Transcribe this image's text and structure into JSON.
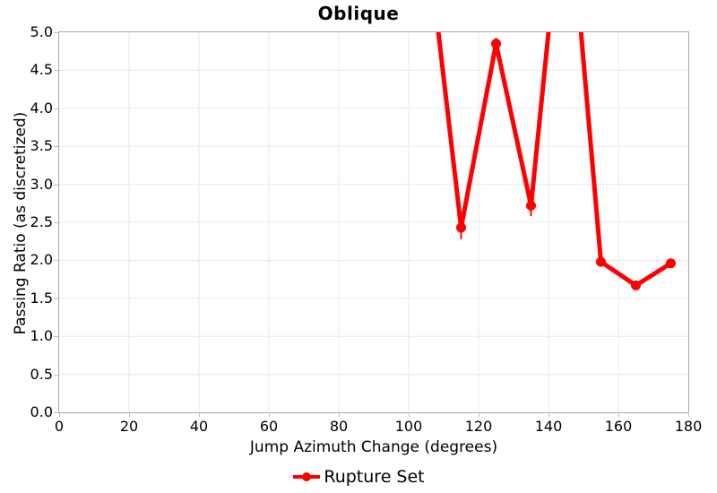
{
  "title": "Oblique",
  "axes": {
    "x_label": "Jump Azimuth Change (degrees)",
    "y_label": "Passing Ratio (as discretized)",
    "x_ticks": [
      "0",
      "20",
      "40",
      "60",
      "80",
      "100",
      "120",
      "140",
      "160",
      "180"
    ],
    "y_ticks": [
      "0.0",
      "0.5",
      "1.0",
      "1.5",
      "2.0",
      "2.5",
      "3.0",
      "3.5",
      "4.0",
      "4.5",
      "5.0"
    ]
  },
  "legend": {
    "label": "Rupture Set",
    "marker": "filled-circle-on-line"
  },
  "colors": {
    "line": "#ff0000",
    "grid": "#e8e8e8",
    "axis_border": "#a9a9a9",
    "tick": "#bdbdbd",
    "text": "#000000",
    "background": "#ffffff"
  },
  "chart_data": {
    "type": "line",
    "title": "Oblique",
    "xlabel": "Jump Azimuth Change (degrees)",
    "ylabel": "Passing Ratio (as discretized)",
    "xlim": [
      0,
      180
    ],
    "ylim": [
      0,
      5
    ],
    "x_tick_step": 20,
    "y_tick_step": 0.5,
    "grid": true,
    "legend_position": "bottom",
    "clip_to_axes": true,
    "series": [
      {
        "name": "Rupture Set",
        "x": [
          105,
          115,
          125,
          135,
          145,
          155,
          165,
          175
        ],
        "y": [
          6.38,
          2.43,
          4.85,
          2.72,
          7.28,
          1.98,
          1.67,
          1.96
        ],
        "note": "values 6.38 and 7.28 exceed ylim and are clipped at top of plot",
        "error_bars": [
          {
            "x": 115,
            "low": 2.28,
            "high": 2.58
          },
          {
            "x": 125,
            "low": 4.73,
            "high": 4.93
          },
          {
            "x": 135,
            "low": 2.58,
            "high": 2.86
          }
        ]
      }
    ]
  }
}
